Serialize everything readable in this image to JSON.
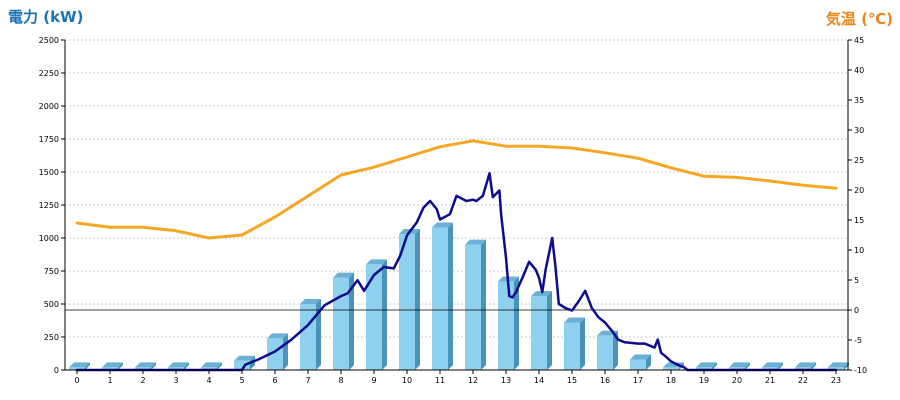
{
  "colors": {
    "power_title": "#1a73b8",
    "temp_title": "#e8861a",
    "bar_front": "#8ed0ee",
    "bar_side": "#4a93b8",
    "bar_top": "#6db0d6",
    "power_line": "#0c0c8c",
    "temp_line": "#f5a623",
    "grid": "#bdbdbd",
    "zero_line": "#000000"
  },
  "chart_data": {
    "type": "bar",
    "left_axis_title": "電力 (kW)",
    "right_axis_title": "気温 (℃)",
    "categories": [
      "0",
      "1",
      "2",
      "3",
      "4",
      "5",
      "6",
      "7",
      "8",
      "9",
      "10",
      "11",
      "12",
      "13",
      "14",
      "15",
      "16",
      "17",
      "18",
      "19",
      "20",
      "21",
      "22",
      "23"
    ],
    "ylim_left": [
      0,
      2500
    ],
    "ylim_right": [
      -10,
      45
    ],
    "y_ticks_left": [
      0,
      250,
      500,
      750,
      1000,
      1250,
      1500,
      1750,
      2000,
      2250,
      2500
    ],
    "y_ticks_right": [
      -10,
      -5,
      0,
      5,
      10,
      15,
      20,
      25,
      30,
      35,
      40,
      45
    ],
    "grid": true,
    "series": [
      {
        "type": "bar",
        "axis": "left",
        "values": [
          20,
          20,
          20,
          20,
          20,
          70,
          240,
          500,
          700,
          800,
          1030,
          1080,
          950,
          670,
          560,
          360,
          260,
          80,
          20,
          20,
          20,
          20,
          20,
          20
        ]
      },
      {
        "type": "line",
        "axis": "left",
        "points": [
          [
            0,
            0
          ],
          [
            5,
            0
          ],
          [
            5.1,
            40
          ],
          [
            5.5,
            80
          ],
          [
            6,
            140
          ],
          [
            6.5,
            230
          ],
          [
            7,
            340
          ],
          [
            7.5,
            490
          ],
          [
            8,
            560
          ],
          [
            8.2,
            580
          ],
          [
            8.5,
            680
          ],
          [
            8.7,
            600
          ],
          [
            9,
            720
          ],
          [
            9.3,
            780
          ],
          [
            9.6,
            770
          ],
          [
            9.8,
            870
          ],
          [
            10,
            1020
          ],
          [
            10.3,
            1120
          ],
          [
            10.5,
            1230
          ],
          [
            10.7,
            1280
          ],
          [
            10.9,
            1220
          ],
          [
            11,
            1140
          ],
          [
            11.3,
            1180
          ],
          [
            11.5,
            1320
          ],
          [
            11.8,
            1280
          ],
          [
            12,
            1290
          ],
          [
            12.1,
            1280
          ],
          [
            12.3,
            1320
          ],
          [
            12.5,
            1490
          ],
          [
            12.6,
            1310
          ],
          [
            12.8,
            1360
          ],
          [
            12.85,
            1180
          ],
          [
            13,
            850
          ],
          [
            13.1,
            560
          ],
          [
            13.2,
            550
          ],
          [
            13.3,
            590
          ],
          [
            13.5,
            700
          ],
          [
            13.7,
            820
          ],
          [
            13.9,
            760
          ],
          [
            14,
            700
          ],
          [
            14.1,
            590
          ],
          [
            14.2,
            760
          ],
          [
            14.4,
            1000
          ],
          [
            14.5,
            780
          ],
          [
            14.6,
            500
          ],
          [
            14.8,
            470
          ],
          [
            15,
            450
          ],
          [
            15.2,
            520
          ],
          [
            15.4,
            600
          ],
          [
            15.6,
            470
          ],
          [
            15.8,
            400
          ],
          [
            16,
            360
          ],
          [
            16.2,
            300
          ],
          [
            16.4,
            230
          ],
          [
            16.6,
            210
          ],
          [
            17,
            200
          ],
          [
            17.2,
            200
          ],
          [
            17.4,
            180
          ],
          [
            17.5,
            170
          ],
          [
            17.6,
            230
          ],
          [
            17.7,
            130
          ],
          [
            17.85,
            100
          ],
          [
            18,
            65
          ],
          [
            18.2,
            40
          ],
          [
            18.4,
            20
          ],
          [
            18.5,
            0
          ],
          [
            23,
            0
          ]
        ]
      },
      {
        "type": "line",
        "axis": "right",
        "points": [
          [
            0,
            14.5
          ],
          [
            1,
            13.8
          ],
          [
            2,
            13.8
          ],
          [
            3,
            13.2
          ],
          [
            4,
            12
          ],
          [
            5,
            12.5
          ],
          [
            6,
            15.5
          ],
          [
            7,
            19
          ],
          [
            8,
            22.5
          ],
          [
            9,
            23.8
          ],
          [
            10,
            25.5
          ],
          [
            11,
            27.2
          ],
          [
            12,
            28.2
          ],
          [
            13,
            27.3
          ],
          [
            14,
            27.3
          ],
          [
            15,
            27
          ],
          [
            16,
            26.2
          ],
          [
            17,
            25.3
          ],
          [
            18,
            23.7
          ],
          [
            19,
            22.3
          ],
          [
            20,
            22.1
          ],
          [
            21,
            21.5
          ],
          [
            22,
            20.8
          ],
          [
            23,
            20.3
          ]
        ]
      }
    ]
  }
}
